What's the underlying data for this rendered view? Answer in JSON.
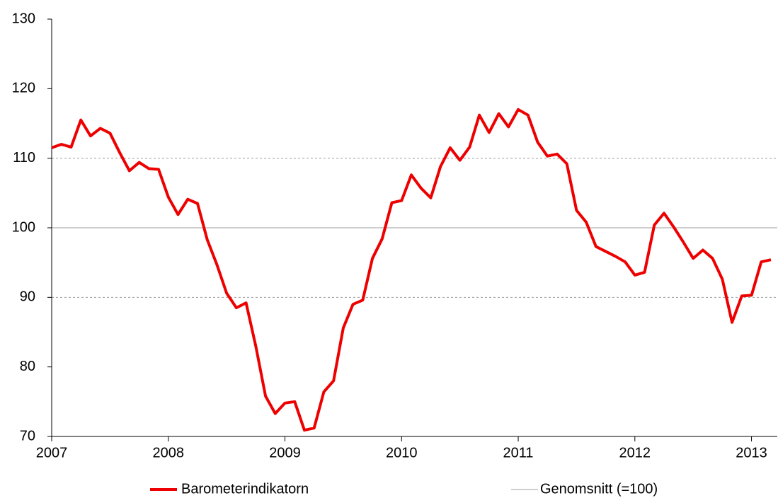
{
  "chart_data": {
    "type": "line",
    "categories": [
      "2007",
      null,
      null,
      null,
      null,
      null,
      null,
      null,
      null,
      null,
      null,
      null,
      "2008",
      null,
      null,
      null,
      null,
      null,
      null,
      null,
      null,
      null,
      null,
      null,
      "2009",
      null,
      null,
      null,
      null,
      null,
      null,
      null,
      null,
      null,
      null,
      null,
      "2010",
      null,
      null,
      null,
      null,
      null,
      null,
      null,
      null,
      null,
      null,
      null,
      "2011",
      null,
      null,
      null,
      null,
      null,
      null,
      null,
      null,
      null,
      null,
      null,
      "2012",
      null,
      null,
      null,
      null,
      null,
      null,
      null,
      null,
      null,
      null,
      null,
      "2013",
      null,
      null
    ],
    "series": [
      {
        "name": "Barometerindikatorn",
        "color": "#ee0000",
        "values": [
          111.5,
          112.0,
          111.6,
          115.5,
          113.2,
          114.3,
          113.6,
          110.8,
          108.2,
          109.4,
          108.5,
          108.4,
          104.4,
          101.9,
          104.1,
          103.5,
          98.3,
          94.7,
          90.6,
          88.5,
          89.2,
          83.0,
          75.8,
          73.3,
          74.8,
          75.0,
          70.9,
          71.2,
          76.4,
          78.0,
          85.6,
          89.0,
          89.6,
          95.6,
          98.4,
          103.6,
          103.9,
          107.6,
          105.7,
          104.3,
          108.8,
          111.5,
          109.7,
          111.6,
          116.2,
          113.7,
          116.4,
          114.5,
          117.0,
          116.2,
          112.3,
          110.3,
          110.6,
          109.2,
          102.5,
          100.8,
          97.3,
          96.6,
          95.9,
          95.1,
          93.2,
          93.6,
          100.4,
          102.1,
          100.1,
          97.9,
          95.6,
          96.8,
          95.6,
          92.6,
          86.4,
          90.2,
          90.3,
          95.1,
          95.4
        ]
      }
    ],
    "reference": {
      "name": "Genomsnitt (=100)",
      "value": 100,
      "color": "#b0b0b0"
    },
    "grid_lines": [
      90,
      110
    ],
    "ylim": [
      70,
      130
    ],
    "yticks": [
      70,
      80,
      90,
      100,
      110,
      120,
      130
    ]
  }
}
